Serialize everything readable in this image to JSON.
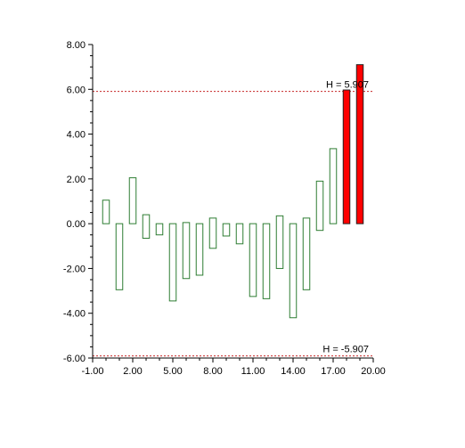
{
  "chart_data": {
    "type": "bar",
    "title": "",
    "xlabel": "",
    "ylabel": "",
    "xlim": [
      -1,
      20
    ],
    "ylim": [
      -6,
      8
    ],
    "x_ticks": [
      "-1.00",
      "2.00",
      "5.00",
      "8.00",
      "11.00",
      "14.00",
      "17.00",
      "20.00"
    ],
    "y_ticks": [
      "8.00",
      "6.00",
      "4.00",
      "2.00",
      "0.00",
      "-2.00",
      "-4.00",
      "-6.00"
    ],
    "bars": [
      {
        "x": 0,
        "value": 1.05,
        "highlight": false
      },
      {
        "x": 1,
        "value": -2.95,
        "highlight": false
      },
      {
        "x": 2,
        "value": 2.05,
        "highlight": false
      },
      {
        "x": 3,
        "value": 0.4,
        "bottom": -0.65,
        "highlight": false
      },
      {
        "x": 4,
        "value": -0.5,
        "highlight": false
      },
      {
        "x": 5,
        "value": -3.45,
        "highlight": false
      },
      {
        "x": 6,
        "value": -2.45,
        "top": 0.05,
        "highlight": false
      },
      {
        "x": 7,
        "value": -2.3,
        "highlight": false
      },
      {
        "x": 8,
        "value": 0.25,
        "bottom": -1.1,
        "highlight": false
      },
      {
        "x": 9,
        "value": -0.55,
        "highlight": false
      },
      {
        "x": 10,
        "value": -0.9,
        "highlight": false
      },
      {
        "x": 11,
        "value": -3.25,
        "highlight": false
      },
      {
        "x": 12,
        "value": -3.35,
        "highlight": false
      },
      {
        "x": 13,
        "value": 0.35,
        "bottom": -2.0,
        "highlight": false
      },
      {
        "x": 14,
        "value": -4.2,
        "highlight": false
      },
      {
        "x": 15,
        "value": 0.25,
        "bottom": -2.95,
        "highlight": false
      },
      {
        "x": 16,
        "value": 1.9,
        "bottom": -0.3,
        "highlight": false
      },
      {
        "x": 17,
        "value": 3.35,
        "highlight": false
      },
      {
        "x": 18,
        "value": 5.97,
        "highlight": true
      },
      {
        "x": 19,
        "value": 7.1,
        "highlight": true
      }
    ],
    "thresholds": [
      {
        "value": 5.907,
        "label": "H = 5.907"
      },
      {
        "value": -5.907,
        "label": "H = -5.907"
      }
    ],
    "colors": {
      "bar_outline": "#2e7d32",
      "highlight_fill": "#ff0000",
      "highlight_outline": "#222222",
      "threshold_line": "#c62828",
      "axis": "#000000"
    }
  }
}
